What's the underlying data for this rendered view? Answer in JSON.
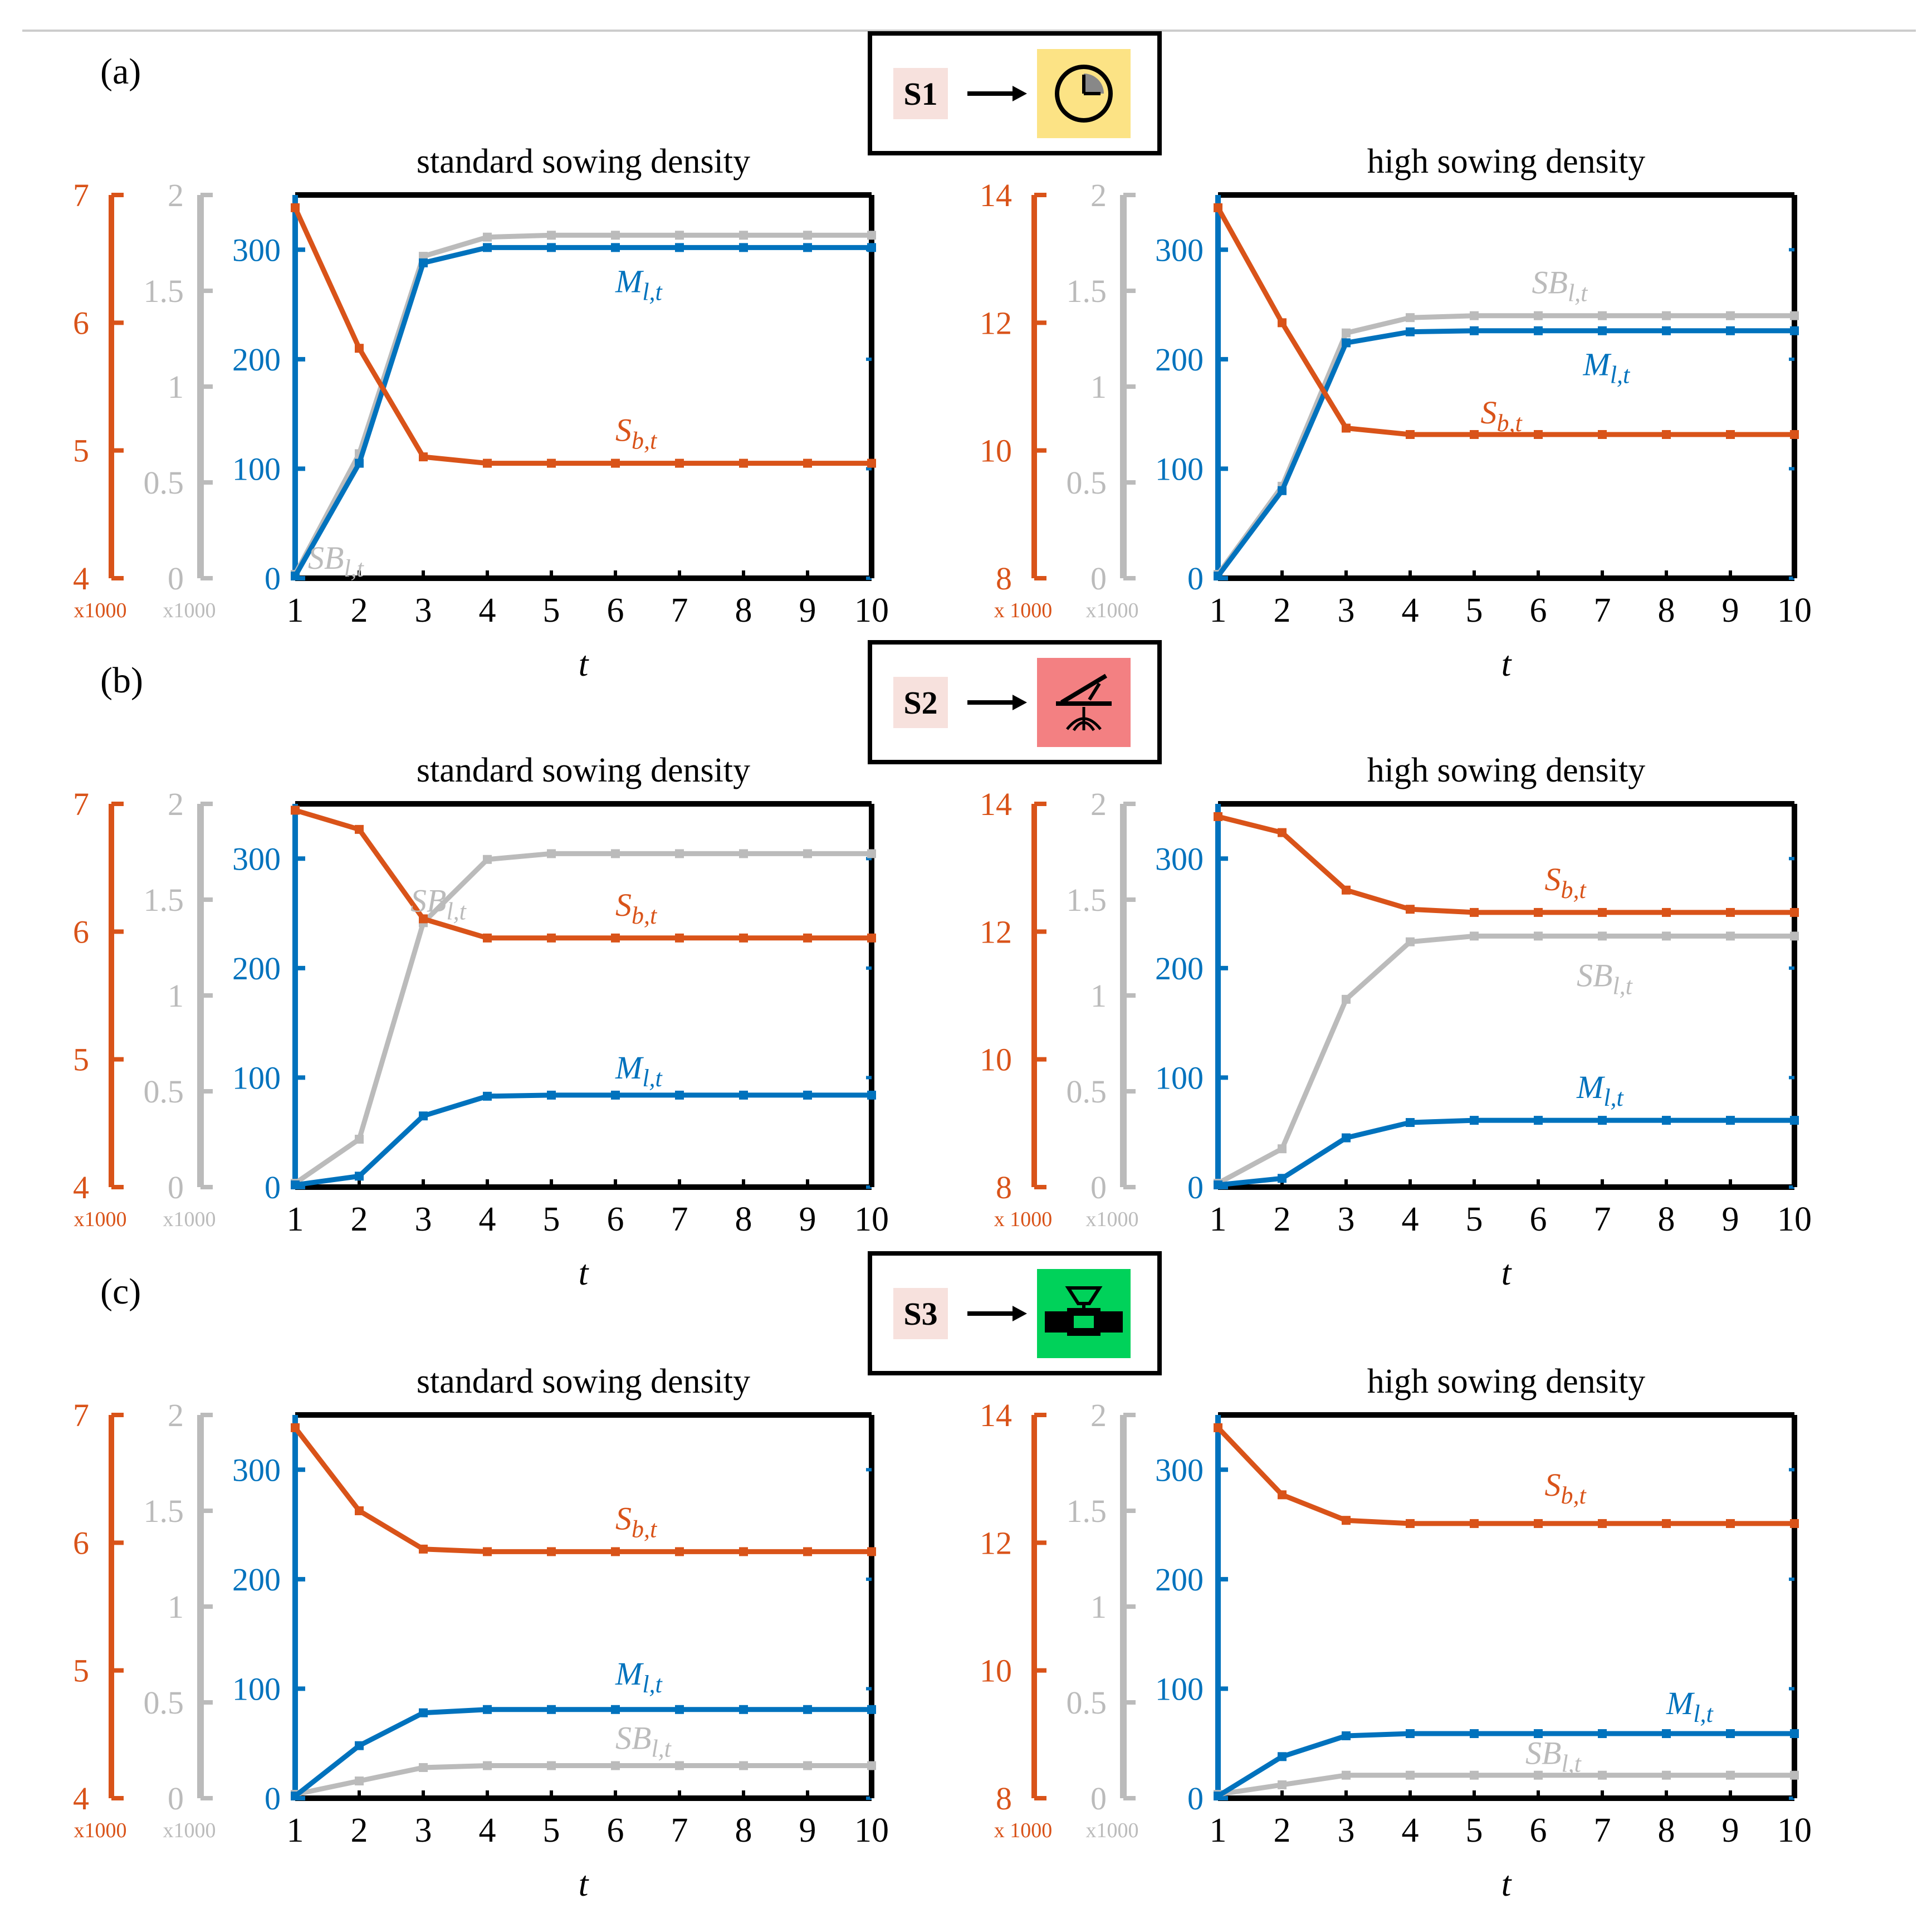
{
  "colors": {
    "sb": "#D95319",
    "sbl": "#BBBBBB",
    "ml": "#0072BD",
    "axis": "#000000",
    "legend_bg": "#F7E1DD"
  },
  "rows": [
    {
      "label": "(a)",
      "scenario": {
        "code": "S1",
        "icon": "clock-icon",
        "icon_bg": "#FCE385"
      },
      "panels": [
        {
          "title": "standard sowing density",
          "red_ticks": [
            "7",
            "6",
            "5",
            "4"
          ],
          "red_mult": "x1000",
          "red_range": [
            4,
            7
          ],
          "grey_mult": "x1000"
        },
        {
          "title": "high sowing density",
          "red_ticks": [
            "14",
            "12",
            "10",
            "8"
          ],
          "red_mult": "x 1000",
          "red_range": [
            8,
            14
          ],
          "grey_mult": "x1000"
        }
      ]
    },
    {
      "label": "(b)",
      "scenario": {
        "code": "S2",
        "icon": "sprinkler-icon",
        "icon_bg": "#F38082"
      },
      "panels": [
        {
          "title": "standard sowing density",
          "red_ticks": [
            "7",
            "6",
            "5",
            "4"
          ],
          "red_mult": "x1000",
          "red_range": [
            4,
            7
          ],
          "grey_mult": "x1000"
        },
        {
          "title": "high sowing density",
          "red_ticks": [
            "14",
            "12",
            "10",
            "8"
          ],
          "red_mult": "x 1000",
          "red_range": [
            8,
            14
          ],
          "grey_mult": "x1000"
        }
      ]
    },
    {
      "label": "(c)",
      "scenario": {
        "code": "S3",
        "icon": "drip-pipe-icon",
        "icon_bg": "#00D25A"
      },
      "panels": [
        {
          "title": "standard sowing density",
          "red_ticks": [
            "7",
            "6",
            "5",
            "4"
          ],
          "red_mult": "x1000",
          "red_range": [
            4,
            7
          ],
          "grey_mult": "x1000"
        },
        {
          "title": "high sowing density",
          "red_ticks": [
            "14",
            "12",
            "10",
            "8"
          ],
          "red_mult": "x 1000",
          "red_range": [
            8,
            14
          ],
          "grey_mult": "x1000"
        }
      ]
    }
  ],
  "common": {
    "grey_ticks": [
      "2",
      "1.5",
      "1",
      "0.5",
      "0"
    ],
    "blue_ticks": [
      "300",
      "200",
      "100",
      "0"
    ],
    "x_ticks": [
      "1",
      "2",
      "3",
      "4",
      "5",
      "6",
      "7",
      "8",
      "9",
      "10"
    ],
    "xlabel": "t",
    "series_labels": {
      "sb": "Sb,t",
      "sbl": "SBl,t",
      "ml": "Ml,t"
    }
  },
  "chart_data": [
    {
      "type": "line",
      "title": "standard sowing density",
      "scenario": "S1",
      "xlabel": "t",
      "x": [
        1,
        2,
        3,
        4,
        5,
        6,
        7,
        8,
        9,
        10
      ],
      "series": [
        {
          "name": "Sb,t",
          "axis": "left-red x1000",
          "ylim": [
            4,
            7
          ],
          "values": [
            6.9,
            5.8,
            4.95,
            4.9,
            4.9,
            4.9,
            4.9,
            4.9,
            4.9,
            4.9
          ]
        },
        {
          "name": "SBl,t",
          "axis": "left-grey x1000",
          "ylim": [
            0,
            2
          ],
          "values": [
            0.02,
            0.65,
            1.68,
            1.78,
            1.79,
            1.79,
            1.79,
            1.79,
            1.79,
            1.79
          ]
        },
        {
          "name": "Ml,t",
          "axis": "left-blue",
          "ylim": [
            0,
            350
          ],
          "values": [
            2,
            105,
            288,
            302,
            302,
            302,
            302,
            302,
            302,
            302
          ]
        }
      ]
    },
    {
      "type": "line",
      "title": "high sowing density",
      "scenario": "S1",
      "xlabel": "t",
      "x": [
        1,
        2,
        3,
        4,
        5,
        6,
        7,
        8,
        9,
        10
      ],
      "series": [
        {
          "name": "Sb,t",
          "axis": "left-red x1000",
          "ylim": [
            8,
            14
          ],
          "values": [
            13.8,
            12.0,
            10.35,
            10.25,
            10.25,
            10.25,
            10.25,
            10.25,
            10.25,
            10.25
          ]
        },
        {
          "name": "SBl,t",
          "axis": "left-grey x1000",
          "ylim": [
            0,
            2
          ],
          "values": [
            0.02,
            0.48,
            1.28,
            1.36,
            1.37,
            1.37,
            1.37,
            1.37,
            1.37,
            1.37
          ]
        },
        {
          "name": "Ml,t",
          "axis": "left-blue",
          "ylim": [
            0,
            350
          ],
          "values": [
            2,
            80,
            215,
            225,
            226,
            226,
            226,
            226,
            226,
            226
          ]
        }
      ]
    },
    {
      "type": "line",
      "title": "standard sowing density",
      "scenario": "S2",
      "xlabel": "t",
      "x": [
        1,
        2,
        3,
        4,
        5,
        6,
        7,
        8,
        9,
        10
      ],
      "series": [
        {
          "name": "Sb,t",
          "axis": "left-red x1000",
          "ylim": [
            4,
            7
          ],
          "values": [
            6.95,
            6.8,
            6.1,
            5.95,
            5.95,
            5.95,
            5.95,
            5.95,
            5.95,
            5.95
          ]
        },
        {
          "name": "SBl,t",
          "axis": "left-grey x1000",
          "ylim": [
            0,
            2
          ],
          "values": [
            0.02,
            0.25,
            1.38,
            1.71,
            1.74,
            1.74,
            1.74,
            1.74,
            1.74,
            1.74
          ]
        },
        {
          "name": "Ml,t",
          "axis": "left-blue",
          "ylim": [
            0,
            350
          ],
          "values": [
            2,
            10,
            65,
            83,
            84,
            84,
            84,
            84,
            84,
            84
          ]
        }
      ]
    },
    {
      "type": "line",
      "title": "high sowing density",
      "scenario": "S2",
      "xlabel": "t",
      "x": [
        1,
        2,
        3,
        4,
        5,
        6,
        7,
        8,
        9,
        10
      ],
      "series": [
        {
          "name": "Sb,t",
          "axis": "left-red x1000",
          "ylim": [
            8,
            14
          ],
          "values": [
            13.8,
            13.55,
            12.65,
            12.35,
            12.3,
            12.3,
            12.3,
            12.3,
            12.3,
            12.3
          ]
        },
        {
          "name": "SBl,t",
          "axis": "left-grey x1000",
          "ylim": [
            0,
            2
          ],
          "values": [
            0.02,
            0.2,
            0.98,
            1.28,
            1.31,
            1.31,
            1.31,
            1.31,
            1.31,
            1.31
          ]
        },
        {
          "name": "Ml,t",
          "axis": "left-blue",
          "ylim": [
            0,
            350
          ],
          "values": [
            2,
            8,
            45,
            59,
            61,
            61,
            61,
            61,
            61,
            61
          ]
        }
      ]
    },
    {
      "type": "line",
      "title": "standard sowing density",
      "scenario": "S3",
      "xlabel": "t",
      "x": [
        1,
        2,
        3,
        4,
        5,
        6,
        7,
        8,
        9,
        10
      ],
      "series": [
        {
          "name": "Sb,t",
          "axis": "left-red x1000",
          "ylim": [
            4,
            7
          ],
          "values": [
            6.9,
            6.25,
            5.95,
            5.93,
            5.93,
            5.93,
            5.93,
            5.93,
            5.93,
            5.93
          ]
        },
        {
          "name": "SBl,t",
          "axis": "left-grey x1000",
          "ylim": [
            0,
            2
          ],
          "values": [
            0.02,
            0.09,
            0.16,
            0.17,
            0.17,
            0.17,
            0.17,
            0.17,
            0.17,
            0.17
          ]
        },
        {
          "name": "Ml,t",
          "axis": "left-blue",
          "ylim": [
            0,
            350
          ],
          "values": [
            2,
            48,
            78,
            81,
            81,
            81,
            81,
            81,
            81,
            81
          ]
        }
      ]
    },
    {
      "type": "line",
      "title": "high sowing density",
      "scenario": "S3",
      "xlabel": "t",
      "x": [
        1,
        2,
        3,
        4,
        5,
        6,
        7,
        8,
        9,
        10
      ],
      "series": [
        {
          "name": "Sb,t",
          "axis": "left-red x1000",
          "ylim": [
            8,
            14
          ],
          "values": [
            13.8,
            12.75,
            12.35,
            12.3,
            12.3,
            12.3,
            12.3,
            12.3,
            12.3,
            12.3
          ]
        },
        {
          "name": "SBl,t",
          "axis": "left-grey x1000",
          "ylim": [
            0,
            2
          ],
          "values": [
            0.02,
            0.07,
            0.12,
            0.12,
            0.12,
            0.12,
            0.12,
            0.12,
            0.12,
            0.12
          ]
        },
        {
          "name": "Ml,t",
          "axis": "left-blue",
          "ylim": [
            0,
            350
          ],
          "values": [
            2,
            38,
            57,
            59,
            59,
            59,
            59,
            59,
            59,
            59
          ]
        }
      ]
    }
  ]
}
